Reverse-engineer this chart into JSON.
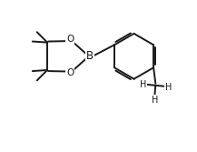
{
  "bg_color": "#ffffff",
  "line_color": "#1a1a1a",
  "line_width": 1.4,
  "font_size": 7.5,
  "fig_width": 2.17,
  "fig_height": 1.67,
  "dpi": 100,
  "xlim": [
    0,
    10
  ],
  "ylim": [
    0,
    7.7
  ]
}
